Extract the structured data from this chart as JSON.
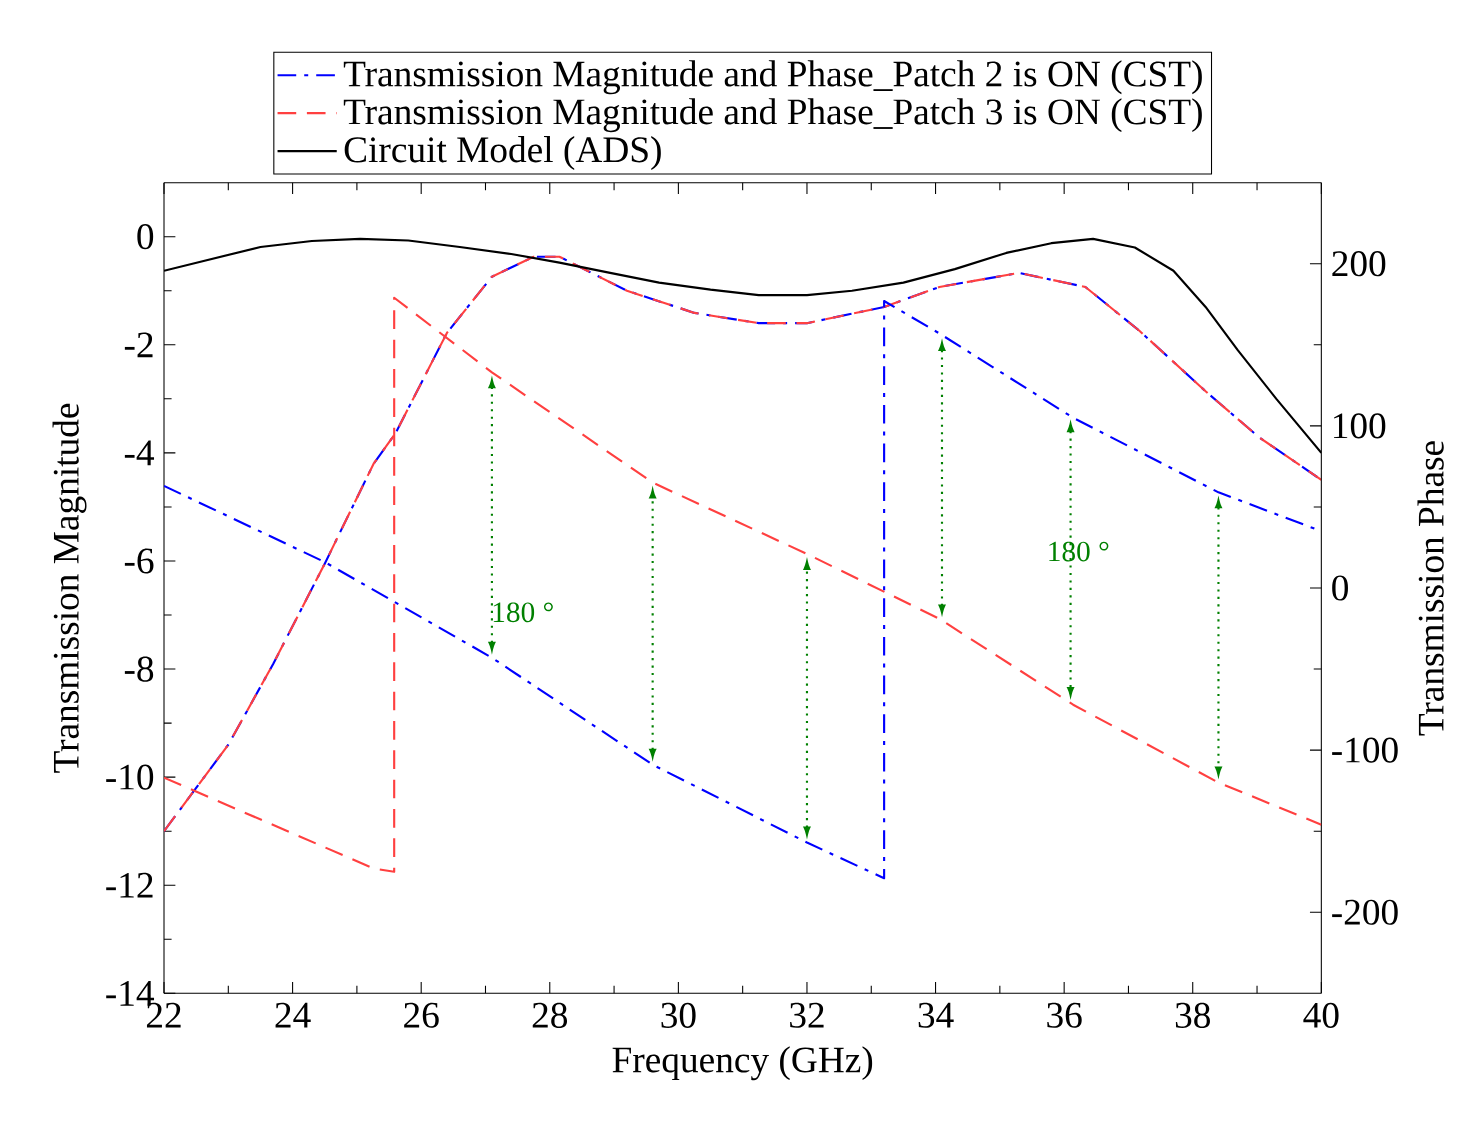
{
  "chart_data": {
    "type": "line",
    "xlabel": "Frequency (GHz)",
    "ylabel": "Transmission Magnitude",
    "y2label": "Transmission Phase",
    "xlim": [
      22,
      40
    ],
    "xticks": [
      22,
      24,
      26,
      28,
      30,
      32,
      34,
      36,
      38,
      40
    ],
    "ylim": [
      -14,
      1
    ],
    "yticks": [
      -14,
      -12,
      -10,
      -8,
      -6,
      -4,
      -2,
      0
    ],
    "y2lim": [
      -250,
      250
    ],
    "y2ticks": [
      -200,
      -100,
      0,
      100,
      200
    ],
    "legend": "top",
    "grid": false,
    "marker": "none",
    "series": [
      {
        "name": "Transmission Magnitude and Phase_Patch 2 is ON (CST)",
        "color": "#0000ff",
        "line_style": "dashdot",
        "x": [
          22,
          23,
          23.7,
          24.5,
          25.26,
          25.6,
          26.4,
          27.1,
          27.75,
          28.15,
          29.2,
          30.25,
          31.25,
          32,
          33.2,
          34.06,
          35.3,
          36.33,
          37.17,
          38.2,
          39.03,
          40
        ],
        "values": [
          -11,
          -9.4,
          -7.9,
          -6.05,
          -4.2,
          -3.64,
          -1.78,
          -0.74,
          -0.37,
          -0.37,
          -1.0,
          -1.41,
          -1.6,
          -1.6,
          -1.3,
          -0.93,
          -0.67,
          -0.93,
          -1.74,
          -2.86,
          -3.71,
          -4.5
        ]
      },
      {
        "name": "Transmission Magnitude and Phase_Patch 3 is ON (CST)",
        "color": "#ff4040",
        "line_style": "dashed",
        "x": [
          22,
          23,
          23.7,
          24.5,
          25.26,
          25.6,
          26.4,
          27.1,
          27.75,
          28.15,
          29.2,
          30.25,
          31.25,
          32,
          33.2,
          34.06,
          35.3,
          36.33,
          37.17,
          38.2,
          39.03,
          40
        ],
        "values": [
          -11,
          -9.4,
          -7.9,
          -6.05,
          -4.2,
          -3.64,
          -1.78,
          -0.74,
          -0.37,
          -0.37,
          -1.0,
          -1.41,
          -1.6,
          -1.6,
          -1.3,
          -0.93,
          -0.67,
          -0.93,
          -1.74,
          -2.86,
          -3.71,
          -4.5
        ]
      },
      {
        "name": "Circuit Model (ADS)",
        "color": "#000000",
        "line_style": "solid",
        "x": [
          22,
          23.5,
          24.3,
          25.05,
          25.8,
          26.6,
          27.4,
          28.15,
          28.9,
          29.7,
          30.5,
          31.25,
          32,
          32.7,
          33.5,
          34.3,
          35.1,
          35.8,
          36.45,
          37.1,
          37.7,
          38.2,
          38.7,
          39.3,
          40
        ],
        "values": [
          -0.63,
          -0.19,
          -0.08,
          -0.04,
          -0.07,
          -0.19,
          -0.32,
          -0.48,
          -0.66,
          -0.85,
          -0.98,
          -1.08,
          -1.08,
          -1.0,
          -0.85,
          -0.6,
          -0.3,
          -0.12,
          -0.04,
          -0.2,
          -0.63,
          -1.3,
          -2.1,
          -3.0,
          -4.0
        ]
      },
      {
        "color": "#0000ff",
        "line_style": "dashdot",
        "axis": "y2",
        "x": [
          22,
          24.5,
          27.1,
          29.6,
          32,
          33.2,
          33.2,
          34.06,
          36.14,
          38.4,
          40
        ],
        "values": [
          63,
          16,
          -43,
          -109,
          -157,
          -179,
          177,
          157,
          105,
          59,
          35
        ]
      },
      {
        "color": "#ff4040",
        "line_style": "dashed",
        "axis": "y2",
        "x": [
          22,
          25.26,
          25.58,
          25.58,
          27.1,
          29.6,
          32,
          34.06,
          36.14,
          38.4,
          40
        ],
        "values": [
          -117,
          -173,
          -175,
          179,
          133,
          65,
          21,
          -19,
          -72,
          -120,
          -146
        ]
      }
    ],
    "annotations": [
      "180 °",
      "180 °"
    ]
  }
}
